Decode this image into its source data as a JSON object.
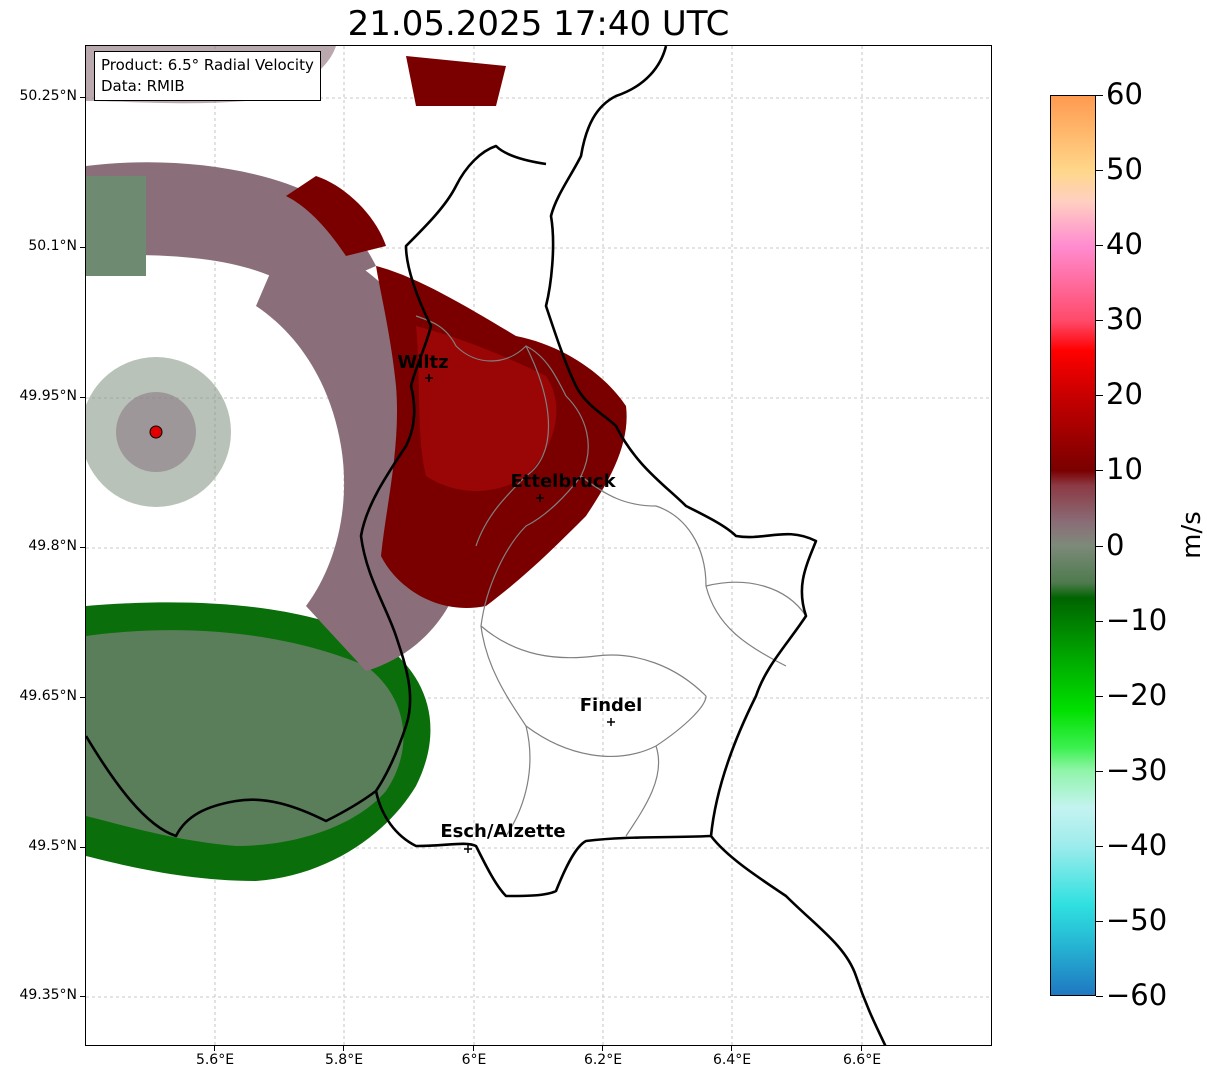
{
  "title": "21.05.2025 17:40 UTC",
  "info_box": {
    "product": "Product: 6.5° Radial Velocity",
    "data_source": "Data: RMIB"
  },
  "y_ticks": [
    "50.25°N",
    "50.1°N",
    "49.95°N",
    "49.8°N",
    "49.65°N",
    "49.5°N",
    "49.35°N"
  ],
  "x_ticks": [
    "5.6°E",
    "5.8°E",
    "6°E",
    "6.2°E",
    "6.4°E",
    "6.6°E"
  ],
  "cities": [
    {
      "name": "Wiltz",
      "lon": 5.93,
      "lat": 49.966
    },
    {
      "name": "Ettelbruck",
      "lon": 6.1,
      "lat": 49.85
    },
    {
      "name": "Findel",
      "lon": 6.21,
      "lat": 49.627
    },
    {
      "name": "Esch/Alzette",
      "lon": 5.99,
      "lat": 49.499
    }
  ],
  "radar_site": {
    "lon": 5.505,
    "lat": 49.914
  },
  "colorbar": {
    "unit": "m/s",
    "min": -60,
    "max": 60,
    "tick_labels": [
      "60",
      "50",
      "40",
      "30",
      "20",
      "10",
      "0",
      "−10",
      "−20",
      "−30",
      "−40",
      "−50",
      "−60"
    ],
    "stops": [
      {
        "value": -60,
        "color": "#1f78c1"
      },
      {
        "value": -53,
        "color": "#26b8d4"
      },
      {
        "value": -48,
        "color": "#2fe0e0"
      },
      {
        "value": -40,
        "color": "#9eecec"
      },
      {
        "value": -35,
        "color": "#c4f3f0"
      },
      {
        "value": -30,
        "color": "#8ff5a8"
      },
      {
        "value": -27,
        "color": "#3cf050"
      },
      {
        "value": -22,
        "color": "#00e000"
      },
      {
        "value": -15,
        "color": "#00a800"
      },
      {
        "value": -7,
        "color": "#006400"
      },
      {
        "value": -5,
        "color": "#4e7a4e"
      },
      {
        "value": 0,
        "color": "#7d8a7a"
      },
      {
        "value": 3,
        "color": "#8a6e78"
      },
      {
        "value": 8,
        "color": "#8c3a44"
      },
      {
        "value": 10,
        "color": "#7a0000"
      },
      {
        "value": 20,
        "color": "#c80000"
      },
      {
        "value": 26,
        "color": "#ff0000"
      },
      {
        "value": 30,
        "color": "#ff4a6a"
      },
      {
        "value": 40,
        "color": "#ff8cd0"
      },
      {
        "value": 46,
        "color": "#ffd0c0"
      },
      {
        "value": 50,
        "color": "#ffd78a"
      },
      {
        "value": 60,
        "color": "#ff9a50"
      }
    ]
  },
  "colors": {
    "grid": "#b0b0b0",
    "border": "#000000",
    "canton": "#808080"
  }
}
